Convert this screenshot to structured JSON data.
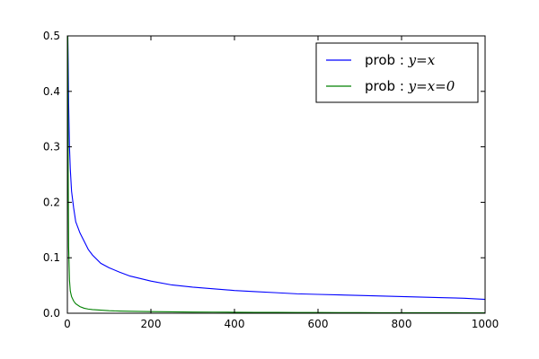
{
  "chart_data": {
    "type": "line",
    "title": "",
    "xlabel": "",
    "ylabel": "",
    "xlim": [
      0,
      1000
    ],
    "ylim": [
      0,
      0.5
    ],
    "xticks": [
      0,
      200,
      400,
      600,
      800,
      1000
    ],
    "yticks": [
      0.0,
      0.1,
      0.2,
      0.3,
      0.4,
      0.5
    ],
    "xtick_labels": [
      "0",
      "200",
      "400",
      "600",
      "800",
      "1000"
    ],
    "ytick_labels": [
      "0.0",
      "0.1",
      "0.2",
      "0.3",
      "0.4",
      "0.5"
    ],
    "grid": false,
    "legend_position": "top-right",
    "x": [
      1,
      2,
      3,
      5,
      7,
      10,
      15,
      20,
      30,
      40,
      50,
      60,
      80,
      100,
      125,
      150,
      200,
      250,
      300,
      350,
      400,
      450,
      500,
      550,
      600,
      650,
      700,
      750,
      800,
      850,
      900,
      950,
      1000
    ],
    "series": [
      {
        "name_text": "prob : ",
        "name_math": "y=x",
        "color": "#0000ff",
        "values": [
          0.5,
          0.45,
          0.38,
          0.3,
          0.26,
          0.22,
          0.19,
          0.165,
          0.145,
          0.13,
          0.115,
          0.105,
          0.09,
          0.082,
          0.074,
          0.067,
          0.058,
          0.051,
          0.047,
          0.044,
          0.041,
          0.039,
          0.037,
          0.035,
          0.034,
          0.033,
          0.032,
          0.031,
          0.03,
          0.029,
          0.028,
          0.027,
          0.025
        ]
      },
      {
        "name_text": "prob : ",
        "name_math": "y=x=0",
        "color": "#008000",
        "values": [
          0.5,
          0.25,
          0.12,
          0.06,
          0.04,
          0.03,
          0.022,
          0.017,
          0.012,
          0.009,
          0.0075,
          0.0065,
          0.0055,
          0.0045,
          0.004,
          0.0035,
          0.003,
          0.0025,
          0.0022,
          0.002,
          0.0018,
          0.0016,
          0.0015,
          0.0014,
          0.0013,
          0.0012,
          0.0011,
          0.001,
          0.001,
          0.0009,
          0.0009,
          0.0008,
          0.0008
        ]
      }
    ]
  }
}
